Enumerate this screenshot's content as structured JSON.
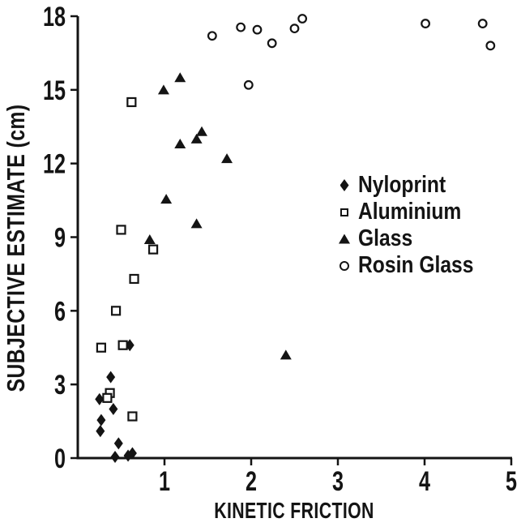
{
  "figure": {
    "background": "#ffffff",
    "ink_color": "#141414"
  },
  "chart_data": {
    "type": "scatter",
    "title": "",
    "xlabel": "KINETIC FRICTION",
    "ylabel": "SUBJECTIVE ESTIMATE (cm)",
    "xlim": [
      0,
      5
    ],
    "ylim": [
      0,
      18
    ],
    "x_ticks": [
      1,
      2,
      3,
      4,
      5
    ],
    "y_ticks": [
      0,
      3,
      6,
      9,
      12,
      15,
      18
    ],
    "grid": false,
    "legend_position": "middle-right",
    "ink_color": "#141414",
    "background": "#ffffff",
    "series": [
      {
        "name": "Nyloprint",
        "marker": "filled-diamond",
        "points": [
          [
            0.6,
            4.6
          ],
          [
            0.38,
            3.3
          ],
          [
            0.25,
            2.4
          ],
          [
            0.41,
            2.0
          ],
          [
            0.27,
            1.55
          ],
          [
            0.26,
            1.1
          ],
          [
            0.47,
            0.6
          ],
          [
            0.43,
            0.05
          ],
          [
            0.58,
            0.1
          ],
          [
            0.63,
            0.2
          ]
        ]
      },
      {
        "name": "Aluminium",
        "marker": "open-square",
        "points": [
          [
            0.62,
            14.5
          ],
          [
            0.5,
            9.3
          ],
          [
            0.87,
            8.5
          ],
          [
            0.65,
            7.3
          ],
          [
            0.44,
            6.0
          ],
          [
            0.27,
            4.5
          ],
          [
            0.52,
            4.6
          ],
          [
            0.37,
            2.65
          ],
          [
            0.34,
            2.45
          ],
          [
            0.63,
            1.7
          ]
        ]
      },
      {
        "name": "Glass",
        "marker": "filled-triangle",
        "points": [
          [
            0.99,
            15.0
          ],
          [
            1.18,
            15.5
          ],
          [
            1.18,
            12.8
          ],
          [
            1.37,
            13.0
          ],
          [
            1.43,
            13.3
          ],
          [
            1.72,
            12.2
          ],
          [
            1.02,
            10.55
          ],
          [
            1.37,
            9.55
          ],
          [
            0.83,
            8.9
          ],
          [
            2.4,
            4.2
          ]
        ]
      },
      {
        "name": "Rosin Glass",
        "marker": "open-circle",
        "points": [
          [
            1.55,
            17.2
          ],
          [
            1.88,
            17.55
          ],
          [
            2.07,
            17.45
          ],
          [
            2.24,
            16.9
          ],
          [
            2.5,
            17.5
          ],
          [
            2.59,
            17.9
          ],
          [
            1.97,
            15.2
          ],
          [
            4.01,
            17.7
          ],
          [
            4.67,
            17.7
          ],
          [
            4.76,
            16.8
          ]
        ]
      }
    ]
  }
}
